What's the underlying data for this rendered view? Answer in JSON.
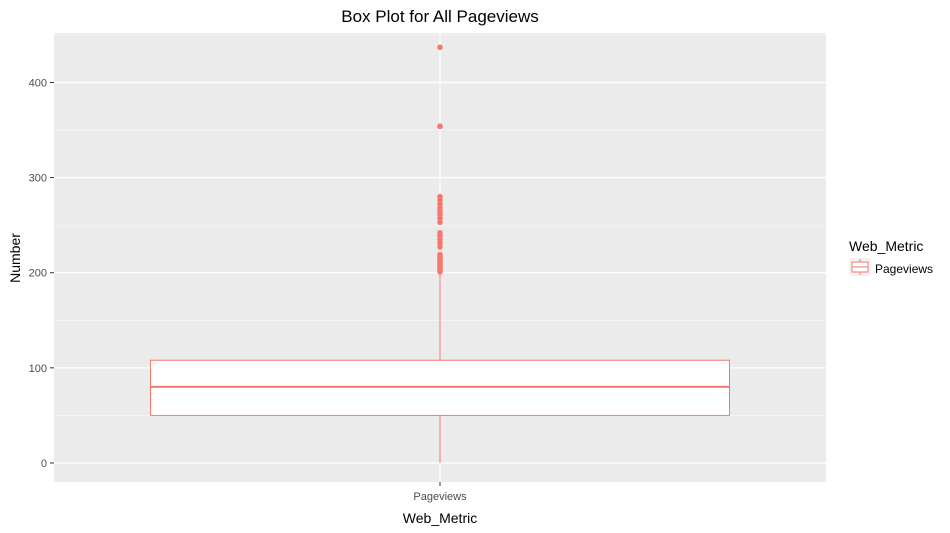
{
  "chart_data": {
    "type": "box",
    "title": "Box Plot for All Pageviews",
    "xlabel": "Web_Metric",
    "ylabel": "Number",
    "categories": [
      "Pageviews"
    ],
    "ylim": [
      -20,
      452
    ],
    "yticks": [
      0,
      100,
      200,
      300,
      400
    ],
    "grid": true,
    "legend": {
      "title": "Web_Metric",
      "placement": "right",
      "entries": [
        "Pageviews"
      ]
    },
    "series": [
      {
        "category": "Pageviews",
        "color": "#F8766D",
        "min": 0,
        "q1": 50,
        "median": 80,
        "q3": 108,
        "whisker_high": 200,
        "outliers": [
          201,
          203,
          205,
          207,
          209,
          211,
          213,
          215,
          217,
          219,
          227,
          231,
          235,
          239,
          242,
          253,
          257,
          261,
          264,
          268,
          272,
          276,
          280,
          354,
          437
        ]
      }
    ]
  },
  "colors": {
    "panel_bg": "#EBEBEB",
    "grid_major": "#FFFFFF",
    "box_fill": "#FFFFFF",
    "box_stroke": "#F8766D"
  }
}
